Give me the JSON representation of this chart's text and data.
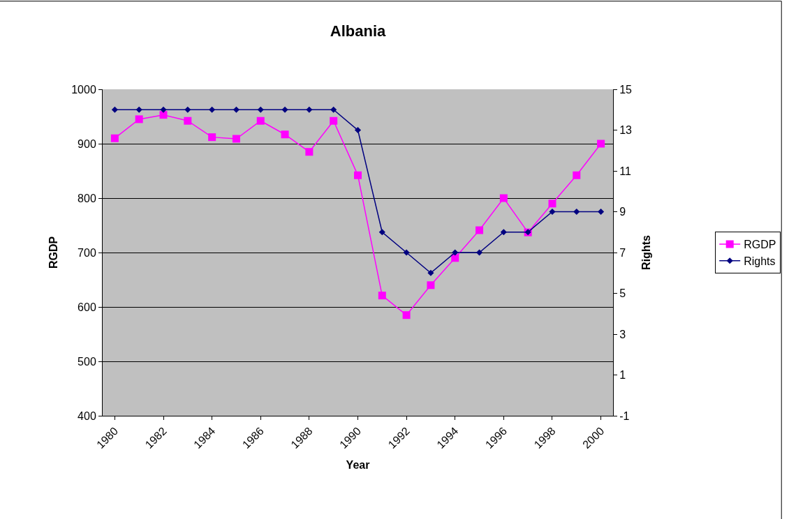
{
  "chart_data": {
    "type": "line",
    "title": "Albania",
    "xlabel": "Year",
    "ylabel": "RGDP",
    "y2label": "Rights",
    "categories": [
      "1980",
      null,
      "1982",
      null,
      "1984",
      null,
      "1986",
      null,
      "1988",
      null,
      "1990",
      null,
      "1992",
      null,
      "1994",
      null,
      "1996",
      null,
      "1998",
      null,
      "2000"
    ],
    "series": [
      {
        "name": "RGDP",
        "color": "#ff00ff",
        "marker": "square",
        "values": [
          910,
          945,
          953,
          942,
          912,
          909,
          942,
          917,
          885,
          942,
          842,
          621,
          585,
          640,
          690,
          741,
          800,
          737,
          790,
          842,
          900
        ]
      },
      {
        "name": "Rights",
        "color": "#000080",
        "marker": "diamond",
        "axis": "y2",
        "values": [
          14,
          14,
          14,
          14,
          14,
          14,
          14,
          14,
          14,
          14,
          13,
          8,
          7,
          6,
          7,
          7,
          8,
          8,
          9,
          9,
          9
        ]
      }
    ],
    "ylim": [
      400,
      1000
    ],
    "yticks": [
      400,
      500,
      600,
      700,
      800,
      900,
      1000
    ],
    "y2lim": [
      -1,
      15
    ],
    "y2ticks": [
      -1,
      1,
      3,
      5,
      7,
      9,
      11,
      13,
      15
    ],
    "grid": "y",
    "legend": "right"
  }
}
